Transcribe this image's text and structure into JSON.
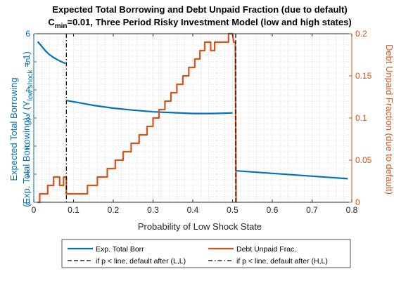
{
  "chart_data": {
    "type": "line",
    "title_line1": "Expected Total Borrowing and Debt Unpaid Fraction (due to default)",
    "title_line2_prefix": "C",
    "title_line2_sub": "min",
    "title_line2_rest": "=0.01, Three Period Risky Investment Model (low and high states)",
    "xlabel": "Probability of Low Shock State",
    "ylabel_left_line1": "Expected Total Borrowing",
    "ylabel_left_line2_pre": "(Exp. Total Borrowing) / (Y",
    "ylabel_left_line2_sub": "low shock",
    "ylabel_left_line2_post": " = 1)",
    "ylabel_right": "Debt Unpaid Fraction (due to default)",
    "xlim": [
      0,
      0.8
    ],
    "ylim_left": [
      0,
      6
    ],
    "ylim_right": [
      0,
      0.2
    ],
    "x_ticks": [
      "0",
      "0.1",
      "0.2",
      "0.3",
      "0.4",
      "0.5",
      "0.6",
      "0.7",
      "0.8"
    ],
    "y_left_ticks": [
      "0",
      "1",
      "2",
      "3",
      "4",
      "5",
      "6"
    ],
    "y_right_ticks": [
      "0",
      "0.05",
      "0.1",
      "0.15",
      "0.2"
    ],
    "grid": "minor-dotted",
    "colors": {
      "left_axis": "#0072BD",
      "right_axis": "#D95319",
      "borrow": "#0072BD",
      "unpaid": "#D95319"
    },
    "series": [
      {
        "name": "Exp. Total Borr",
        "axis": "left",
        "segments": [
          [
            [
              0.01,
              5.72
            ],
            [
              0.02,
              5.55
            ],
            [
              0.03,
              5.38
            ],
            [
              0.04,
              5.25
            ],
            [
              0.05,
              5.15
            ],
            [
              0.06,
              5.07
            ],
            [
              0.07,
              5.0
            ],
            [
              0.08,
              4.94
            ]
          ],
          [
            [
              0.083,
              3.62
            ],
            [
              0.1,
              3.58
            ],
            [
              0.15,
              3.45
            ],
            [
              0.2,
              3.35
            ],
            [
              0.25,
              3.28
            ],
            [
              0.3,
              3.22
            ],
            [
              0.35,
              3.19
            ],
            [
              0.4,
              3.16
            ],
            [
              0.45,
              3.16
            ],
            [
              0.5,
              3.18
            ]
          ],
          [
            [
              0.51,
              1.12
            ],
            [
              0.55,
              1.08
            ],
            [
              0.6,
              1.03
            ],
            [
              0.65,
              0.98
            ],
            [
              0.7,
              0.93
            ],
            [
              0.75,
              0.88
            ],
            [
              0.79,
              0.84
            ]
          ]
        ]
      },
      {
        "name": "Debt Unpaid Frac.",
        "axis": "right",
        "segments": [
          [
            [
              0.01,
              0
            ],
            [
              0.015,
              0
            ],
            [
              0.015,
              0.01
            ],
            [
              0.035,
              0.01
            ],
            [
              0.035,
              0.02
            ],
            [
              0.05,
              0.02
            ],
            [
              0.05,
              0.03
            ],
            [
              0.065,
              0.03
            ],
            [
              0.065,
              0.02
            ],
            [
              0.075,
              0.02
            ],
            [
              0.075,
              0.03
            ],
            [
              0.082,
              0.03
            ],
            [
              0.082,
              0.01
            ],
            [
              0.135,
              0.01
            ],
            [
              0.135,
              0.02
            ],
            [
              0.16,
              0.02
            ],
            [
              0.16,
              0.03
            ],
            [
              0.185,
              0.03
            ],
            [
              0.185,
              0.04
            ],
            [
              0.205,
              0.04
            ],
            [
              0.205,
              0.05
            ],
            [
              0.225,
              0.05
            ],
            [
              0.225,
              0.06
            ],
            [
              0.245,
              0.06
            ],
            [
              0.245,
              0.07
            ],
            [
              0.265,
              0.07
            ],
            [
              0.265,
              0.08
            ],
            [
              0.285,
              0.08
            ],
            [
              0.285,
              0.09
            ],
            [
              0.3,
              0.09
            ],
            [
              0.3,
              0.1
            ],
            [
              0.315,
              0.1
            ],
            [
              0.315,
              0.11
            ],
            [
              0.33,
              0.11
            ],
            [
              0.33,
              0.12
            ],
            [
              0.345,
              0.12
            ],
            [
              0.345,
              0.13
            ],
            [
              0.36,
              0.13
            ],
            [
              0.36,
              0.14
            ],
            [
              0.375,
              0.14
            ],
            [
              0.375,
              0.15
            ],
            [
              0.39,
              0.15
            ],
            [
              0.39,
              0.16
            ],
            [
              0.405,
              0.16
            ],
            [
              0.405,
              0.17
            ],
            [
              0.418,
              0.17
            ],
            [
              0.418,
              0.18
            ],
            [
              0.43,
              0.18
            ],
            [
              0.43,
              0.19
            ],
            [
              0.445,
              0.19
            ],
            [
              0.445,
              0.18
            ],
            [
              0.455,
              0.18
            ],
            [
              0.455,
              0.19
            ],
            [
              0.49,
              0.19
            ],
            [
              0.49,
              0.2
            ],
            [
              0.5,
              0.2
            ],
            [
              0.503,
              0.19
            ],
            [
              0.507,
              0.19
            ],
            [
              0.509,
              0
            ]
          ]
        ]
      }
    ],
    "vlines": [
      {
        "name": "if p < line, default after (L,L)",
        "x": 0.508,
        "style": "dashed"
      },
      {
        "name": "if p < line, default after (H,L)",
        "x": 0.082,
        "style": "dashdot"
      }
    ],
    "legend": {
      "placement": "south-outside",
      "entries": [
        {
          "label": "Exp. Total Borr",
          "style": "solid",
          "color": "#0072BD"
        },
        {
          "label": "Debt Unpaid Frac.",
          "style": "solid",
          "color": "#D95319"
        },
        {
          "label": "if p < line, default after (L,L)",
          "style": "dashed",
          "color": "#000000"
        },
        {
          "label": "if p < line, default after (H,L)",
          "style": "dashdot",
          "color": "#000000"
        }
      ]
    }
  }
}
